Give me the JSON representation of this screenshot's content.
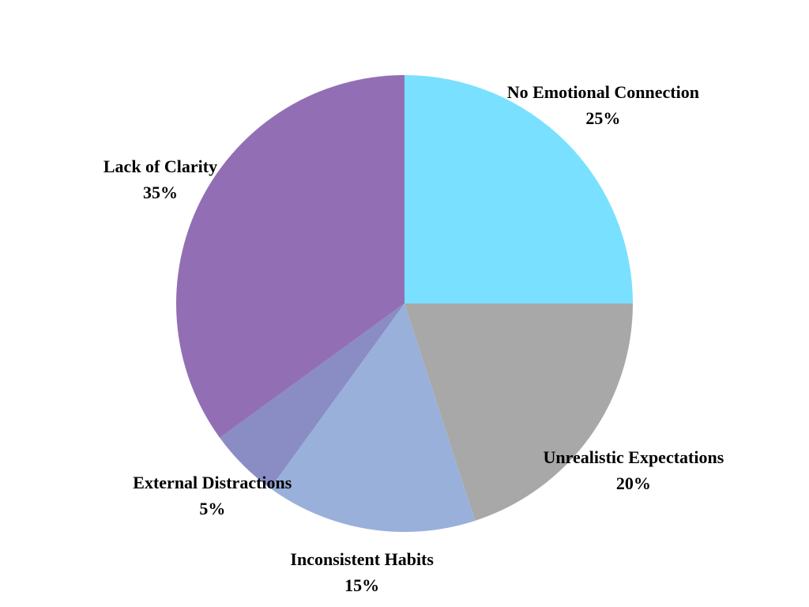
{
  "chart_data": {
    "type": "pie",
    "slices": [
      {
        "label": "No Emotional Connection",
        "value": 25,
        "percent_label": "25%",
        "color": "#7AE0FF"
      },
      {
        "label": "Unrealistic Expectations",
        "value": 20,
        "percent_label": "20%",
        "color": "#A8A8A8"
      },
      {
        "label": "Inconsistent Habits",
        "value": 15,
        "percent_label": "15%",
        "color": "#98B0DA"
      },
      {
        "label": "External Distractions",
        "value": 5,
        "percent_label": "5%",
        "color": "#8A8CC4"
      },
      {
        "label": "Lack of Clarity",
        "value": 35,
        "percent_label": "35%",
        "color": "#926FB4"
      }
    ],
    "start_angle": "12 o'clock",
    "direction": "clockwise",
    "legend": "none"
  }
}
